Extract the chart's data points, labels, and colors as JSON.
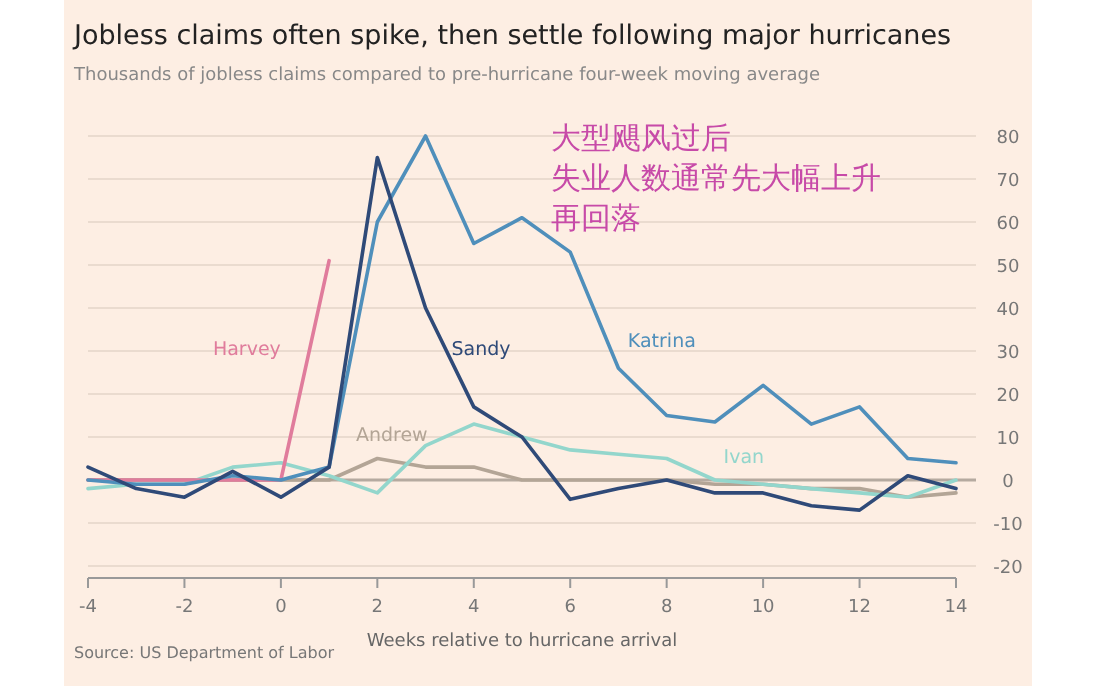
{
  "chart_data": {
    "type": "line",
    "title": "Jobless claims often spike, then settle following major hurricanes",
    "subtitle": "Thousands of jobless claims compared to pre-hurricane four-week moving average",
    "xlabel": "Weeks relative to hurricane arrival",
    "x": [
      -4,
      -3,
      -2,
      -1,
      0,
      1,
      2,
      3,
      4,
      5,
      6,
      7,
      8,
      9,
      10,
      11,
      12,
      13,
      14
    ],
    "xlim": [
      -4,
      14
    ],
    "xticks": [
      -4,
      -2,
      0,
      2,
      4,
      6,
      8,
      10,
      12,
      14
    ],
    "ylim": [
      -20,
      80
    ],
    "yticks": [
      -20,
      -10,
      0,
      10,
      20,
      30,
      40,
      50,
      60,
      70,
      80
    ],
    "grid": "y",
    "legend": false,
    "ref_lines": [
      {
        "axis": "y",
        "value": 0,
        "color": "#b5aaa0"
      }
    ],
    "series": [
      {
        "name": "Andrew",
        "color": "#b3a596",
        "values": [
          0,
          0,
          0,
          0,
          0,
          0,
          5,
          3,
          3,
          0,
          0,
          0,
          0,
          -1,
          -1,
          -2,
          -2,
          -4,
          -3
        ]
      },
      {
        "name": "Ivan",
        "color": "#93d6cc",
        "values": [
          -2,
          -1,
          -1,
          3,
          4,
          1,
          -3,
          8,
          13,
          10,
          7,
          6,
          5,
          0,
          -1,
          -2,
          -3,
          -4,
          0
        ]
      },
      {
        "name": "Harvey",
        "color": "#e07c9c",
        "values": [
          0,
          0,
          0,
          0,
          0,
          51,
          null,
          null,
          null,
          null,
          null,
          null,
          null,
          null,
          null,
          null,
          null,
          null,
          null
        ]
      },
      {
        "name": "Katrina",
        "color": "#4f8fbb",
        "values": [
          0,
          -1,
          -1,
          1,
          0,
          3,
          60,
          80,
          55,
          61,
          53,
          26,
          15,
          13.5,
          22,
          13,
          17,
          5,
          4
        ]
      },
      {
        "name": "Sandy",
        "color": "#2f4a78",
        "values": [
          3,
          -2,
          -4,
          2,
          -4,
          3,
          75,
          40,
          17,
          10,
          -4.5,
          -2,
          0,
          -3,
          -3,
          -6,
          -7,
          1,
          -2
        ]
      }
    ],
    "annotations": [
      "大型飓风过后",
      "失业人数通常先大幅上升",
      "再回落",
      "Source: US Department of Labor"
    ]
  }
}
